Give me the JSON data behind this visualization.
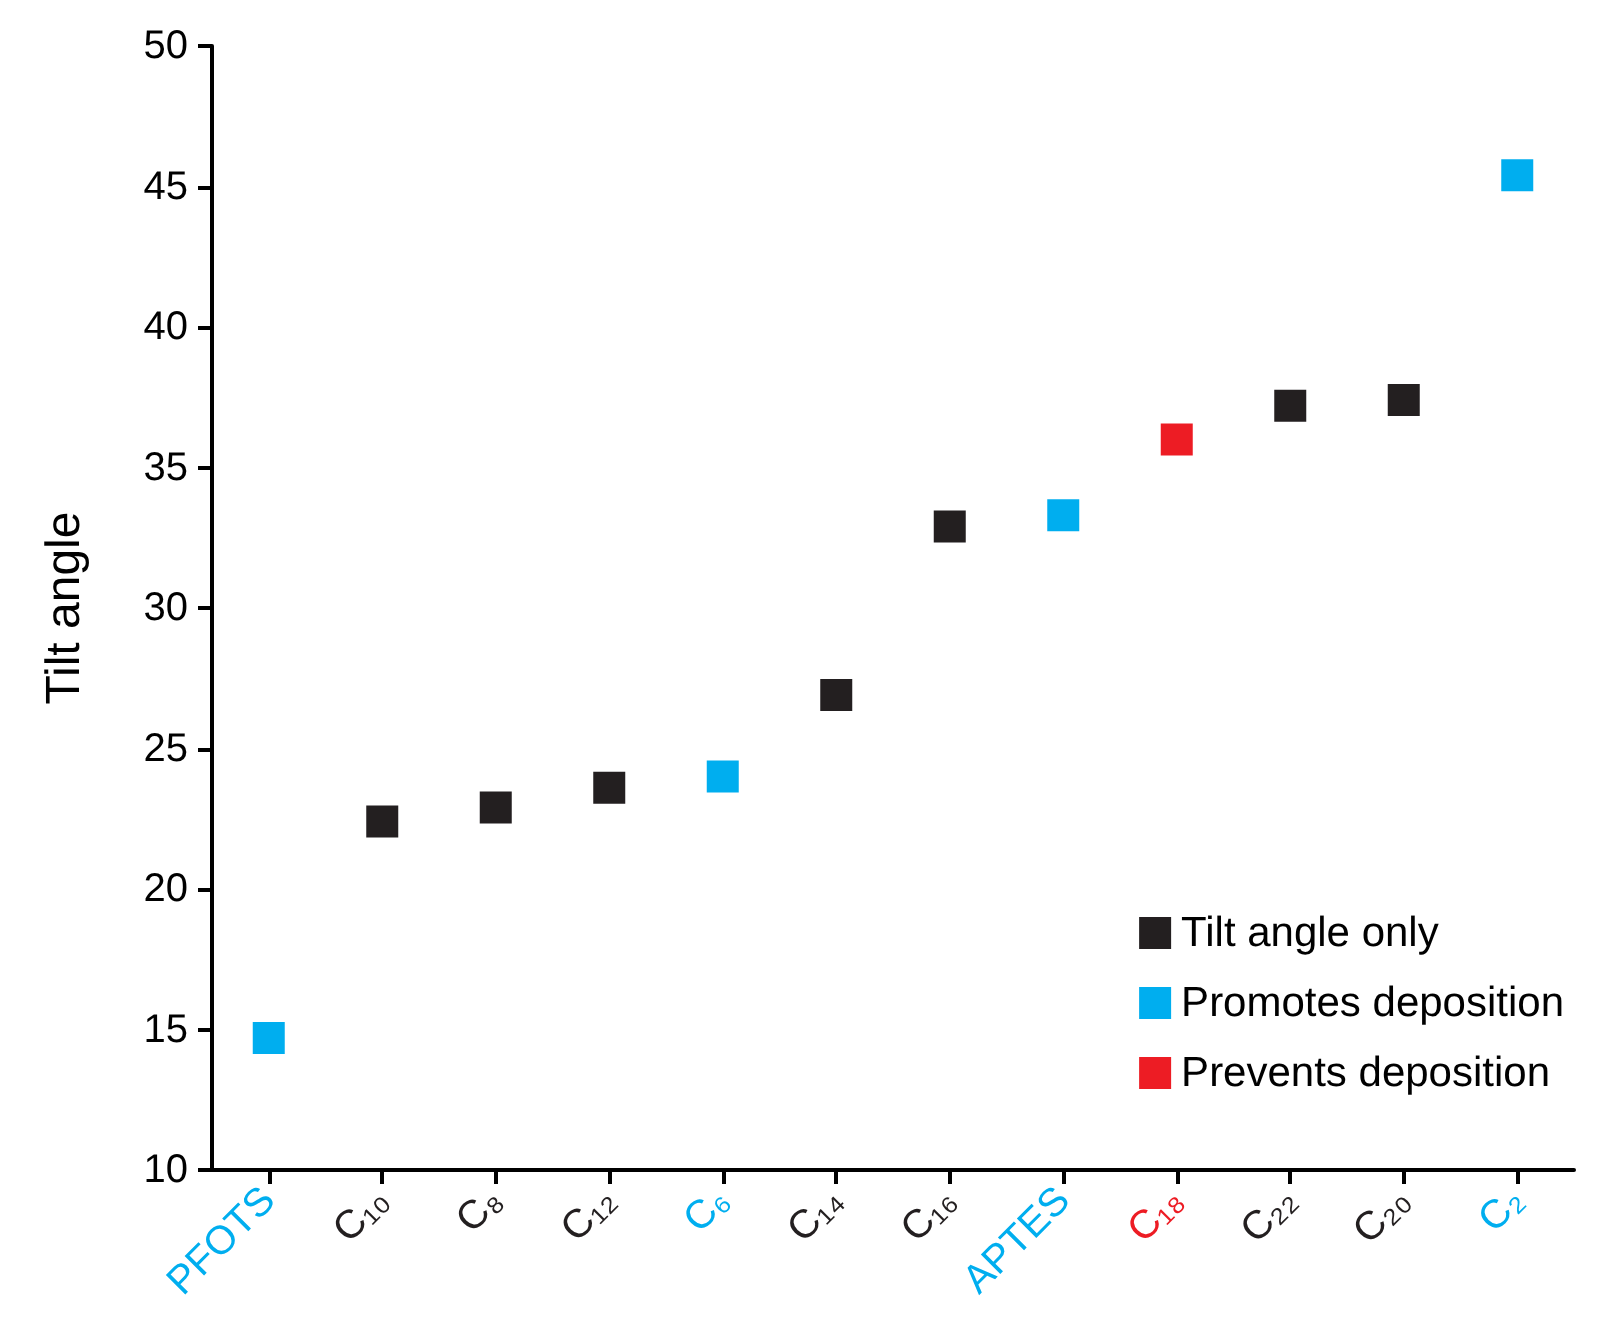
{
  "chart_data": {
    "type": "scatter",
    "ylabel": "Tilt angle",
    "categories": [
      "PFOTS",
      "C₁₀",
      "C₈",
      "C₁₂",
      "C₆",
      "C₁₄",
      "C₁₆",
      "APTES",
      "C₁₈",
      "C₂₂",
      "C₂₀",
      "C₂"
    ],
    "series": [
      {
        "name": "Tilt angle only",
        "color": "#231f20",
        "values": [
          null,
          22.4,
          22.9,
          23.6,
          null,
          26.9,
          32.9,
          null,
          null,
          37.2,
          37.4,
          null
        ]
      },
      {
        "name": "Promotes deposition",
        "color": "#00aeef",
        "values": [
          14.7,
          null,
          null,
          null,
          24.0,
          null,
          null,
          33.3,
          null,
          null,
          null,
          45.4
        ]
      },
      {
        "name": "Prevents deposition",
        "color": "#ed1c24",
        "values": [
          null,
          null,
          null,
          null,
          null,
          null,
          null,
          null,
          36.0,
          null,
          null,
          null
        ]
      }
    ],
    "ylim": [
      10,
      50
    ],
    "yticks": [
      10,
      15,
      20,
      25,
      30,
      35,
      40,
      45,
      50
    ],
    "grid": false,
    "legend": "bottom right",
    "marker": "square"
  }
}
